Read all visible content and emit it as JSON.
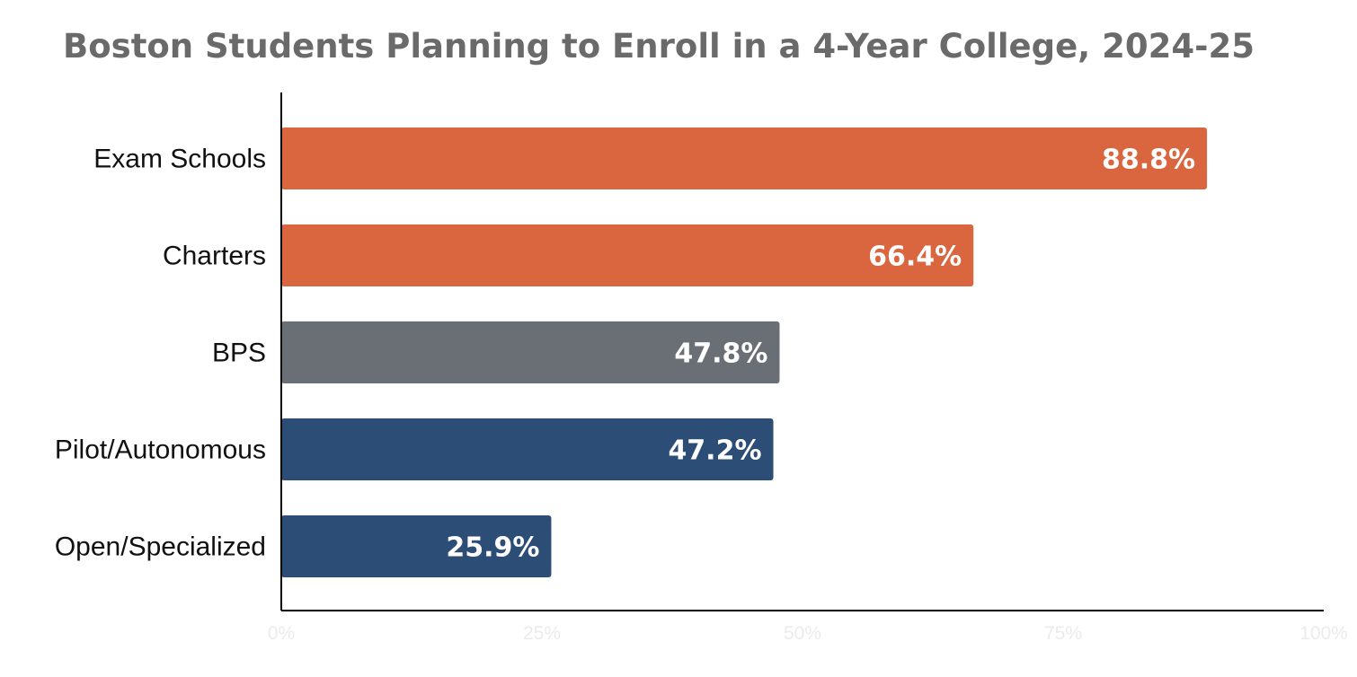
{
  "chart_data": {
    "type": "bar",
    "orientation": "horizontal",
    "title": "Boston Students Planning to Enroll in a 4-Year College, 2024-25",
    "xlabel": "",
    "ylabel": "",
    "xlim": [
      0,
      100
    ],
    "grid": false,
    "categories": [
      "Exam Schools",
      "Charters",
      "BPS",
      "Pilot/Autonomous",
      "Open/Specialized"
    ],
    "values": [
      88.8,
      66.4,
      47.8,
      47.2,
      25.9
    ],
    "value_labels": [
      "88.8%",
      "66.4%",
      "47.8%",
      "47.2%",
      "25.9%"
    ],
    "bar_colors": [
      "#d9663e",
      "#d9663e",
      "#6a6e75",
      "#2c4e76",
      "#2c4e76"
    ],
    "x_ticks": [
      0,
      25,
      50,
      75,
      100
    ],
    "x_tick_labels": [
      "0%",
      "25%",
      "50%",
      "75%",
      "100%"
    ]
  }
}
